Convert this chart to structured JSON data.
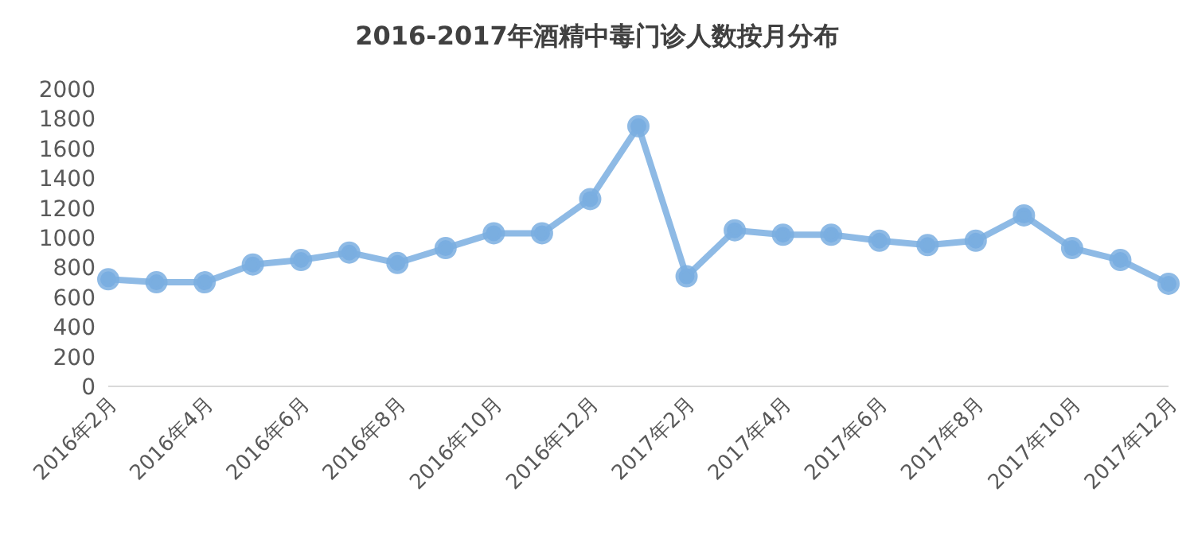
{
  "chart_data": {
    "type": "line",
    "title": "2016-2017年酒精中毒门诊人数按月分布",
    "categories": [
      "2016年2月",
      null,
      "2016年4月",
      null,
      "2016年6月",
      null,
      "2016年8月",
      null,
      "2016年10月",
      null,
      "2016年12月",
      null,
      "2017年2月",
      null,
      "2017年4月",
      null,
      "2017年6月",
      null,
      "2017年8月",
      null,
      "2017年10月",
      null,
      "2017年12月"
    ],
    "series": [
      {
        "color": "#7aaee0",
        "values": [
          720,
          700,
          700,
          820,
          850,
          900,
          830,
          930,
          1030,
          1030,
          1260,
          1750,
          740,
          1050,
          1020,
          1020,
          980,
          950,
          980,
          1150,
          930,
          850,
          690
        ]
      }
    ],
    "ylim": [
      0,
      2000
    ],
    "yticks": [
      0,
      200,
      400,
      600,
      800,
      1000,
      1200,
      1400,
      1600,
      1800,
      2000
    ],
    "marker": "circle",
    "line_style": "solid",
    "grid": false,
    "legend": false
  }
}
